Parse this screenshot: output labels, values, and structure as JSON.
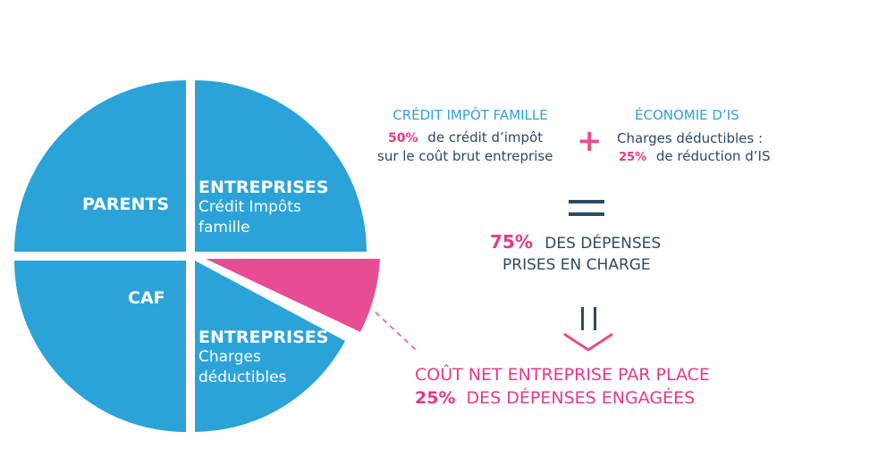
{
  "colors": {
    "blue": "#2ba3d9",
    "pink": "#e84c93",
    "dark_text": "#2c4a63",
    "pink_text": "#e4398a"
  },
  "pie": {
    "slices": [
      {
        "name": "parents",
        "label": "PARENTS"
      },
      {
        "name": "entreprises-credit",
        "title": "ENTREPRISES",
        "line1": "Crédit Impôts",
        "line2": "famille"
      },
      {
        "name": "caf",
        "label": "CAF"
      },
      {
        "name": "entreprises-charges",
        "title": "ENTREPRISES",
        "line1": "Charges",
        "line2": "déductibles"
      }
    ]
  },
  "credit_block": {
    "heading": "CRÉDIT IMPÔT FAMILLE",
    "percent": "50%",
    "line1": "de crédit d’impôt",
    "line2": "sur le coût brut entreprise"
  },
  "plus_symbol": "+",
  "is_block": {
    "heading": "ÉCONOMIE D’IS",
    "line1": "Charges déductibles :",
    "percent": "25%",
    "line2": "de réduction d’IS"
  },
  "result": {
    "percent": "75%",
    "line1": "DES DÉPENSES",
    "line2": "PRISES EN CHARGE"
  },
  "net_cost": {
    "line1": "COÛT NET ENTREPRISE PAR PLACE",
    "percent": "25%",
    "line2": "DES DÉPENSES ENGAGÉES"
  }
}
